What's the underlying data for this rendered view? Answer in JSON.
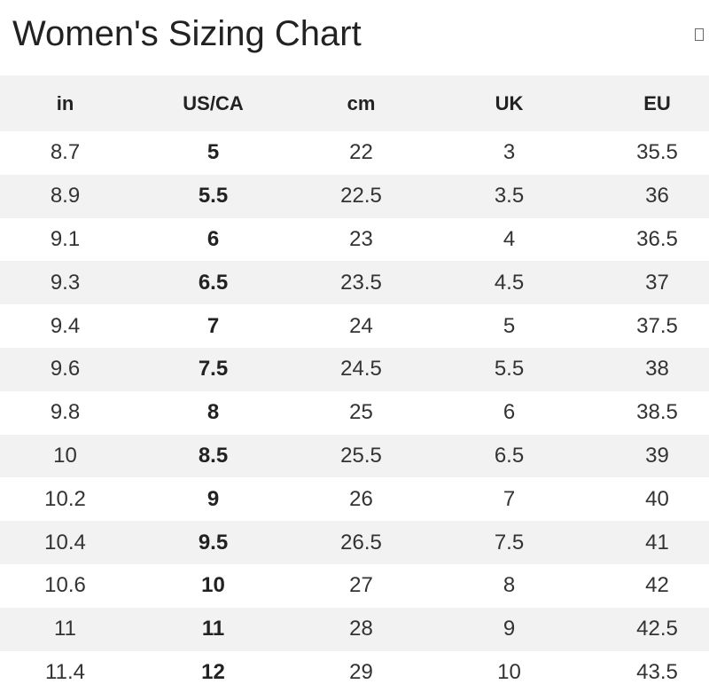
{
  "header": {
    "title": "Women's Sizing Chart"
  },
  "table": {
    "columns": [
      "in",
      "US/CA",
      "cm",
      "UK",
      "EU"
    ],
    "rows": [
      [
        8.7,
        5,
        22,
        3,
        35.5
      ],
      [
        8.9,
        5.5,
        22.5,
        3.5,
        36
      ],
      [
        9.1,
        6,
        23,
        4,
        36.5
      ],
      [
        9.3,
        6.5,
        23.5,
        4.5,
        37
      ],
      [
        9.4,
        7,
        24,
        5,
        37.5
      ],
      [
        9.6,
        7.5,
        24.5,
        5.5,
        38
      ],
      [
        9.8,
        8,
        25,
        6,
        38.5
      ],
      [
        10,
        8.5,
        25.5,
        6.5,
        39
      ],
      [
        10.2,
        9,
        26,
        7,
        40
      ],
      [
        10.4,
        9.5,
        26.5,
        7.5,
        41
      ],
      [
        10.6,
        10,
        27,
        8,
        42
      ],
      [
        11,
        11,
        28,
        9,
        42.5
      ],
      [
        11.4,
        12,
        29,
        10,
        43.5
      ]
    ]
  }
}
